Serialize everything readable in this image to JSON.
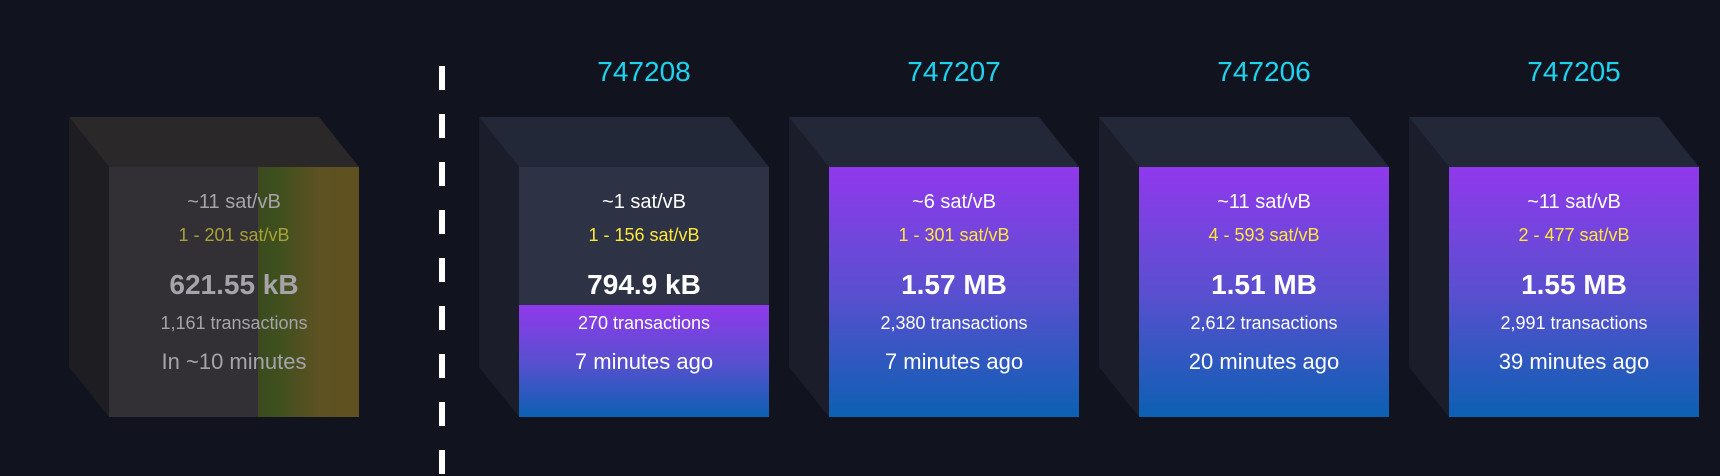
{
  "colors": {
    "background": "#11131f",
    "height_text": "#1bd4f0",
    "fee_range": "#ffe83a",
    "fill_top": "#9039ec",
    "fill_bottom": "#0c60b2"
  },
  "mempool_block": {
    "median_fee": "~11 sat/vB",
    "fee_range": "1 - 201 sat/vB",
    "size": "621.55 kB",
    "transactions": "1,161 transactions",
    "eta": "In ~10 minutes"
  },
  "blocks": [
    {
      "height": "747208",
      "median_fee": "~1 sat/vB",
      "fee_range": "1 - 156 sat/vB",
      "size": "794.9 kB",
      "transactions": "270 transactions",
      "time": "7 minutes ago",
      "fill_percent": 45
    },
    {
      "height": "747207",
      "median_fee": "~6 sat/vB",
      "fee_range": "1 - 301 sat/vB",
      "size": "1.57 MB",
      "transactions": "2,380 transactions",
      "time": "7 minutes ago",
      "fill_percent": 100
    },
    {
      "height": "747206",
      "median_fee": "~11 sat/vB",
      "fee_range": "4 - 593 sat/vB",
      "size": "1.51 MB",
      "transactions": "2,612 transactions",
      "time": "20 minutes ago",
      "fill_percent": 100
    },
    {
      "height": "747205",
      "median_fee": "~11 sat/vB",
      "fee_range": "2 - 477 sat/vB",
      "size": "1.55 MB",
      "transactions": "2,991 transactions",
      "time": "39 minutes ago",
      "fill_percent": 100
    }
  ]
}
